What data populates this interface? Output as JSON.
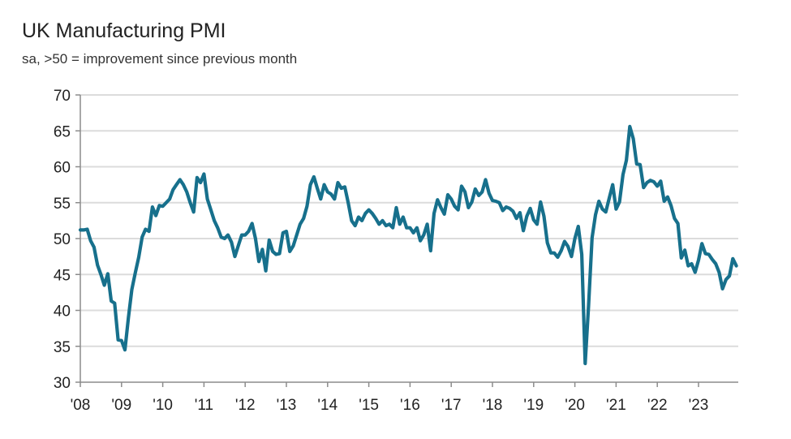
{
  "chart_data": {
    "type": "line",
    "title": "UK Manufacturing PMI",
    "subtitle": "sa, >50 = improvement since previous month",
    "xlabel": "",
    "ylabel": "",
    "ylim": [
      30,
      70
    ],
    "yticks": [
      30,
      35,
      40,
      45,
      50,
      55,
      60,
      65,
      70
    ],
    "xticks": [
      "'08",
      "'09",
      "'10",
      "'11",
      "'12",
      "'13",
      "'14",
      "'15",
      "'16",
      "'17",
      "'18",
      "'19",
      "'20",
      "'21",
      "'22",
      "'23"
    ],
    "x_start": "2008-01",
    "x_end": "2023-12",
    "frequency": "monthly",
    "grid": "horizontal",
    "line_color": "#17708c",
    "series": [
      {
        "values": [
          51.2,
          51.2,
          51.3,
          49.7,
          48.8,
          46.3,
          45.0,
          43.5,
          45.1,
          41.3,
          41.0,
          35.9,
          35.8,
          34.5,
          39.0,
          42.9,
          45.2,
          47.4,
          50.2,
          51.3,
          51.0,
          54.4,
          53.2,
          54.6,
          54.5,
          55.0,
          55.5,
          56.8,
          57.5,
          58.2,
          57.5,
          56.5,
          55.0,
          53.7,
          58.5,
          57.8,
          59.0,
          55.5,
          54.0,
          52.5,
          51.5,
          50.2,
          50.0,
          50.5,
          49.5,
          47.5,
          49.0,
          50.5,
          50.5,
          51.0,
          52.1,
          50.0,
          46.8,
          48.5,
          45.5,
          49.8,
          48.2,
          47.8,
          47.9,
          50.8,
          51.0,
          48.2,
          49.0,
          50.5,
          52.0,
          52.8,
          54.5,
          57.5,
          58.6,
          57.0,
          55.5,
          57.5,
          56.5,
          56.2,
          55.5,
          57.8,
          57.0,
          57.2,
          55.0,
          52.5,
          51.8,
          53.0,
          52.5,
          53.5,
          54.0,
          53.5,
          52.8,
          52.0,
          52.5,
          51.8,
          52.0,
          51.5,
          54.3,
          52.0,
          53.0,
          51.5,
          51.5,
          50.8,
          51.5,
          49.7,
          50.5,
          52.0,
          48.3,
          53.5,
          55.4,
          54.3,
          53.4,
          56.1,
          55.5,
          54.5,
          54.0,
          57.3,
          56.5,
          54.3,
          55.1,
          56.9,
          56.0,
          56.5,
          58.2,
          56.3,
          55.3,
          55.2,
          55.0,
          53.9,
          54.4,
          54.2,
          53.8,
          52.8,
          53.6,
          51.1,
          53.1,
          54.2,
          52.6,
          52.0,
          55.1,
          53.1,
          49.4,
          48.0,
          48.0,
          47.4,
          48.3,
          49.6,
          48.9,
          47.5,
          50.0,
          51.7,
          47.8,
          32.6,
          40.7,
          50.1,
          53.3,
          55.2,
          54.1,
          53.7,
          55.6,
          57.5,
          54.1,
          55.1,
          58.9,
          60.9,
          65.6,
          63.9,
          60.4,
          60.3,
          57.1,
          57.8,
          58.1,
          57.9,
          57.3,
          58.0,
          55.2,
          55.8,
          54.6,
          52.8,
          52.1,
          47.3,
          48.4,
          46.2,
          46.5,
          45.3,
          47.0,
          49.3,
          47.9,
          47.8,
          47.1,
          46.5,
          45.3,
          43.0,
          44.3,
          44.8,
          47.2,
          46.2
        ]
      }
    ]
  }
}
